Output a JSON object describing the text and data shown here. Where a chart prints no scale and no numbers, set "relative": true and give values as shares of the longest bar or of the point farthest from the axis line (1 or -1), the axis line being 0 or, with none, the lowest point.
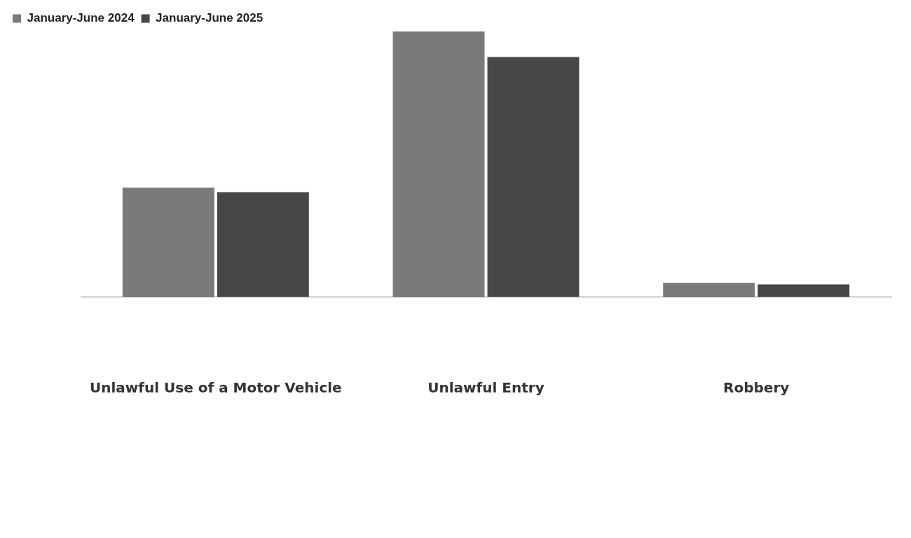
{
  "chart_data": {
    "type": "bar",
    "relative": true,
    "categories": [
      "Unlawful Use of a Motor Vehicle",
      "Unlawful Entry",
      "Robbery"
    ],
    "series": [
      {
        "name": "January-June 2024",
        "color": "#7a7a7a",
        "values": [
          0.411,
          1,
          0.052
        ]
      },
      {
        "name": "January-June 2025",
        "color": "#474747",
        "values": [
          0.394,
          0.904,
          0.046
        ]
      }
    ],
    "legend": "top left",
    "grid": false
  }
}
